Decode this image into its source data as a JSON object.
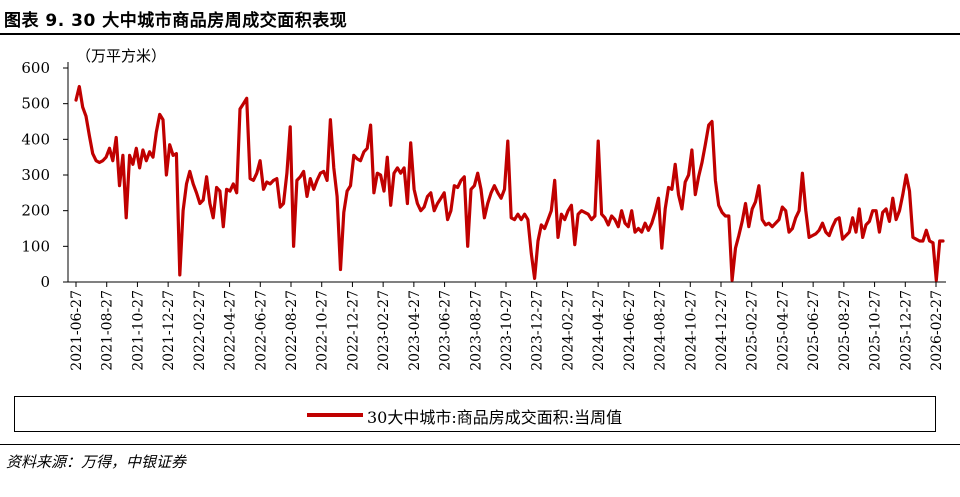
{
  "title": "图表 9. 30 大中城市商品房周成交面积表现",
  "source": "资料来源：万得，中银证券",
  "colors": {
    "series": "#c00000",
    "axis": "#000000"
  },
  "chart_data": {
    "type": "line",
    "unit_label": "（万平方米）",
    "ylim": [
      0,
      600
    ],
    "yticks": [
      "0",
      "100",
      "200",
      "300",
      "400",
      "500",
      "600"
    ],
    "xticks": [
      "2021-06-27",
      "2021-08-27",
      "2021-10-27",
      "2021-12-27",
      "2022-02-27",
      "2022-04-27",
      "2022-06-27",
      "2022-08-27",
      "2022-10-27",
      "2022-12-27",
      "2023-02-27",
      "2023-04-27",
      "2023-06-27",
      "2023-08-27",
      "2023-10-27",
      "2023-12-27",
      "2024-02-27",
      "2024-04-27",
      "2024-06-27",
      "2024-08-27",
      "2024-10-27",
      "2024-12-27",
      "2025-02-27",
      "2025-04-27",
      "2025-06-27",
      "2025-08-27",
      "2025-10-27",
      "2025-12-27",
      "2026-02-27"
    ],
    "grid": false,
    "legend_position": "bottom",
    "series": [
      {
        "name": "30大中城市:商品房成交面积:当周值",
        "frequency": "weekly",
        "values": [
          510,
          548,
          490,
          465,
          410,
          360,
          340,
          335,
          340,
          350,
          375,
          340,
          405,
          270,
          355,
          180,
          355,
          330,
          375,
          320,
          370,
          340,
          365,
          350,
          420,
          470,
          455,
          300,
          385,
          355,
          360,
          20,
          200,
          275,
          310,
          275,
          250,
          220,
          230,
          295,
          220,
          180,
          265,
          255,
          155,
          260,
          255,
          275,
          250,
          485,
          500,
          515,
          290,
          285,
          305,
          340,
          260,
          280,
          275,
          285,
          290,
          210,
          220,
          305,
          435,
          100,
          285,
          295,
          310,
          240,
          290,
          260,
          285,
          305,
          310,
          285,
          455,
          320,
          240,
          35,
          195,
          255,
          270,
          355,
          345,
          340,
          365,
          375,
          440,
          250,
          305,
          300,
          255,
          350,
          215,
          305,
          320,
          305,
          320,
          220,
          390,
          260,
          220,
          200,
          210,
          240,
          250,
          200,
          220,
          235,
          250,
          175,
          200,
          270,
          265,
          285,
          295,
          100,
          260,
          270,
          305,
          260,
          180,
          220,
          250,
          270,
          250,
          235,
          260,
          395,
          180,
          175,
          190,
          175,
          190,
          175,
          80,
          10,
          115,
          160,
          150,
          175,
          200,
          285,
          125,
          190,
          175,
          200,
          215,
          105,
          190,
          200,
          195,
          190,
          175,
          185,
          395,
          190,
          180,
          160,
          185,
          175,
          155,
          200,
          165,
          155,
          200,
          140,
          150,
          140,
          165,
          145,
          165,
          195,
          235,
          95,
          205,
          265,
          260,
          330,
          245,
          205,
          280,
          300,
          370,
          245,
          295,
          335,
          385,
          440,
          450,
          285,
          215,
          195,
          185,
          185,
          5,
          95,
          130,
          170,
          220,
          155,
          205,
          225,
          270,
          175,
          160,
          165,
          155,
          165,
          175,
          210,
          200,
          140,
          150,
          180,
          200,
          305,
          200,
          125,
          130,
          135,
          145,
          165,
          140,
          130,
          155,
          175,
          180,
          120,
          130,
          140,
          180,
          140,
          205,
          125,
          160,
          170,
          200,
          200,
          140,
          195,
          205,
          170,
          235,
          175,
          200,
          245,
          300,
          255,
          125,
          120,
          115,
          115,
          145,
          115,
          110,
          5,
          115,
          115
        ]
      }
    ]
  }
}
